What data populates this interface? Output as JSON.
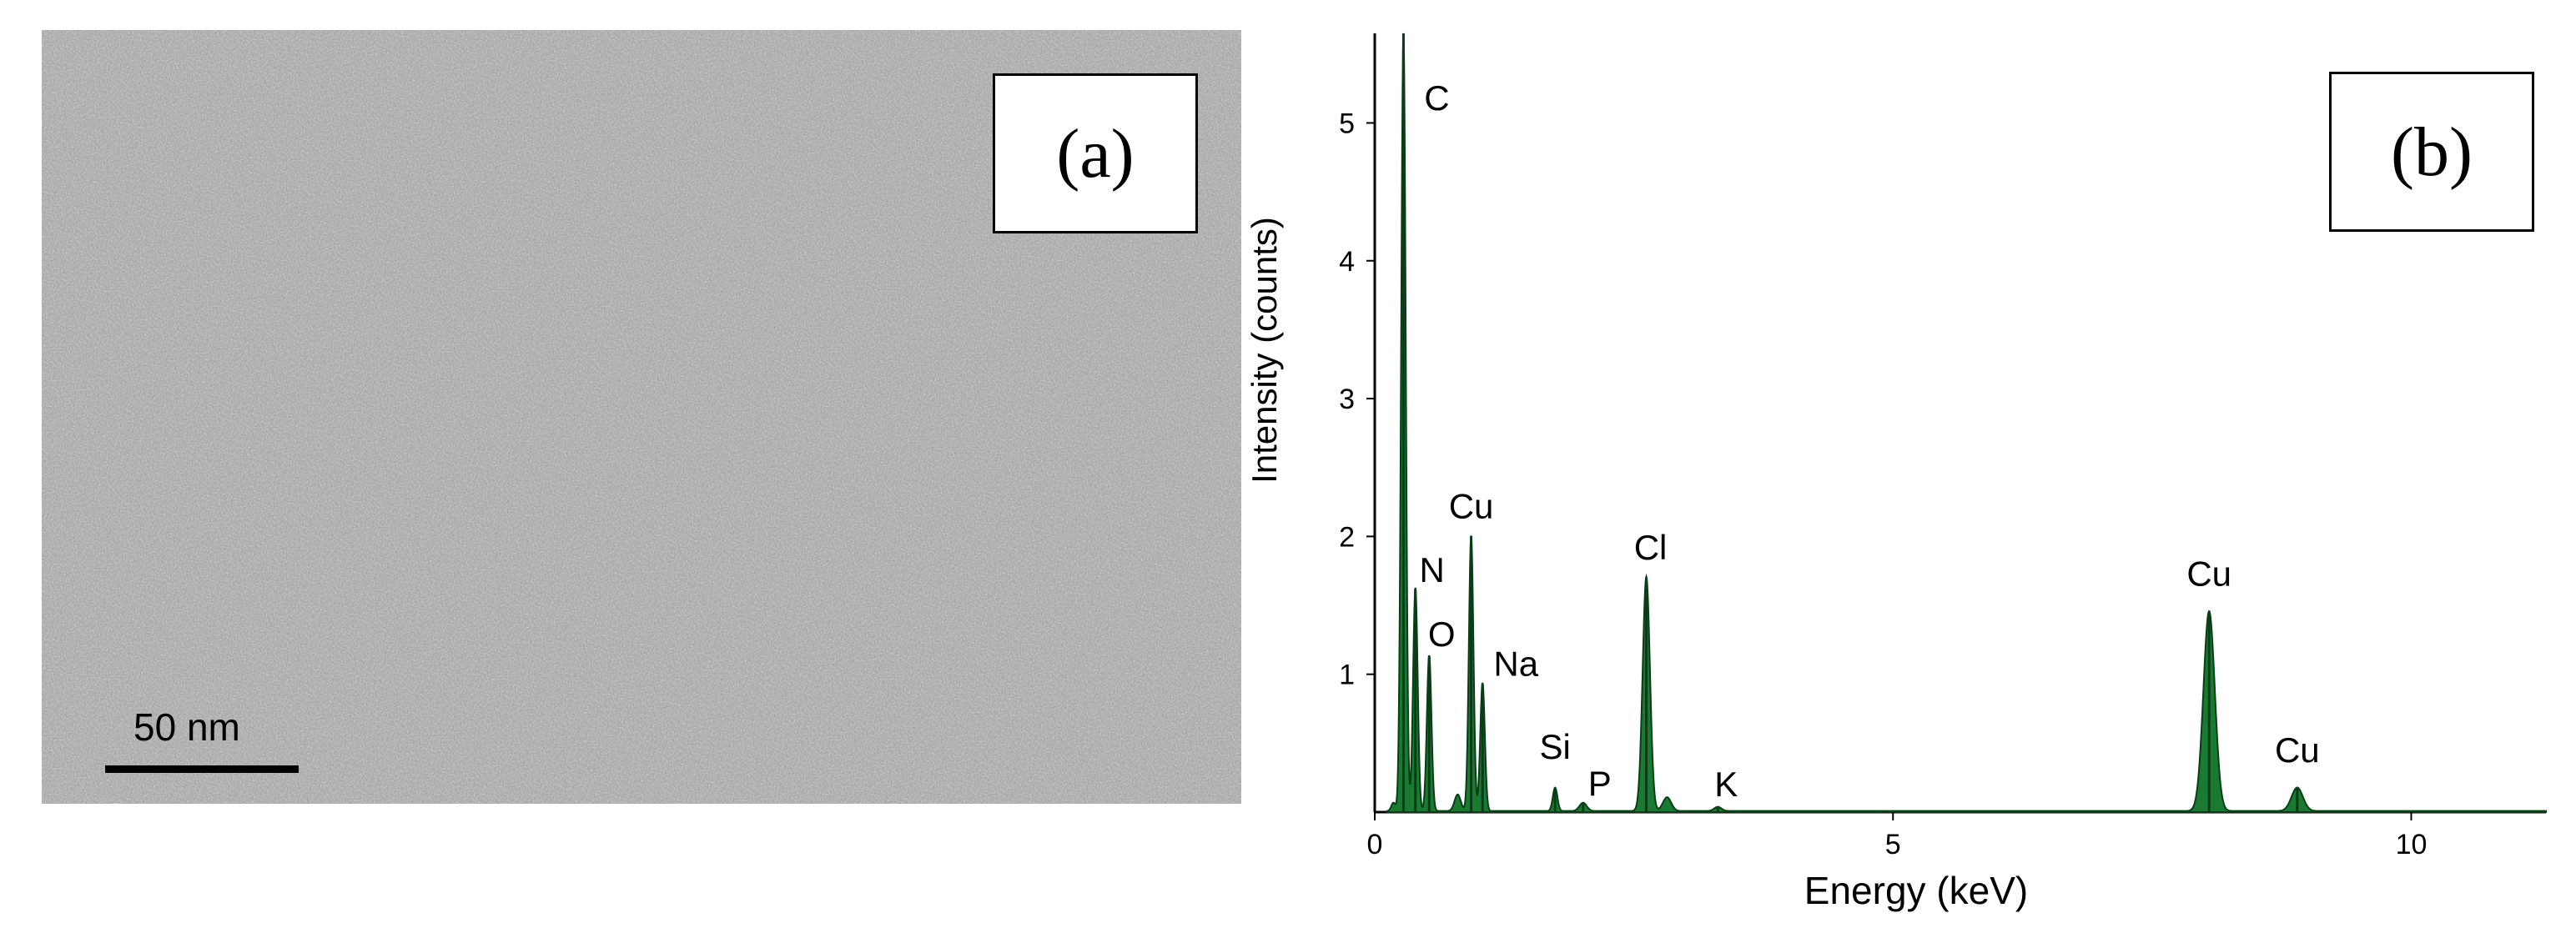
{
  "panel_a": {
    "label": "(a)",
    "scale_bar_label": "50 nm"
  },
  "panel_b": {
    "label": "(b)"
  },
  "chart_data": {
    "type": "line",
    "title": "",
    "xlabel": "Energy (keV)",
    "ylabel": "Intensity (counts)",
    "xlim": [
      0,
      11.3
    ],
    "ylim": [
      0,
      5.65
    ],
    "xticks": [
      0,
      5,
      10
    ],
    "yticks": [
      1,
      2,
      3,
      4,
      5
    ],
    "x_tick_labels": [
      "0",
      "5",
      "10"
    ],
    "y_tick_labels": [
      "1",
      "2",
      "3",
      "4",
      "5"
    ],
    "series_color": "#1b7a32",
    "series_edge_color": "#0a3d17",
    "peaks": [
      {
        "element": "C",
        "energy": 0.277,
        "intensity": 5.65
      },
      {
        "element": "N",
        "energy": 0.392,
        "intensity": 1.62
      },
      {
        "element": "O",
        "energy": 0.525,
        "intensity": 1.13
      },
      {
        "element": "Cu",
        "energy": 0.93,
        "intensity": 2.0
      },
      {
        "element": "Na",
        "energy": 1.04,
        "intensity": 0.93
      },
      {
        "element": "Si",
        "energy": 1.74,
        "intensity": 0.17
      },
      {
        "element": "P",
        "energy": 2.01,
        "intensity": 0.06
      },
      {
        "element": "Cl",
        "energy": 2.62,
        "intensity": 1.7
      },
      {
        "element": "K",
        "energy": 3.31,
        "intensity": 0.03
      },
      {
        "element": "Cu",
        "energy": 8.05,
        "intensity": 1.45
      },
      {
        "element": "Cu",
        "energy": 8.9,
        "intensity": 0.17
      }
    ],
    "annotations": [
      "C",
      "N",
      "O",
      "Cu",
      "Na",
      "Si",
      "P",
      "Cl",
      "K",
      "Cu",
      "Cu"
    ]
  }
}
